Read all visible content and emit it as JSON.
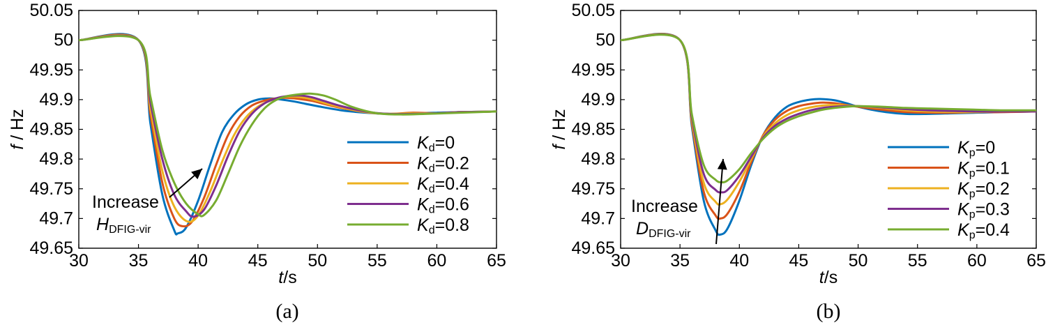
{
  "chart_data": [
    {
      "panel": "a",
      "type": "line",
      "caption": "(a)",
      "ylabel_var": "f",
      "ylabel_unit": " / Hz",
      "xlabel_var": "t",
      "xlabel_unit": "/s",
      "xlim": [
        30,
        65
      ],
      "ylim": [
        49.65,
        50.05
      ],
      "xticks": [
        "30",
        "35",
        "40",
        "45",
        "50",
        "55",
        "60",
        "65"
      ],
      "yticks": [
        "50.05",
        "50",
        "49.95",
        "49.9",
        "49.85",
        "49.8",
        "49.75",
        "49.7",
        "49.65"
      ],
      "annotation": {
        "line1": "Increase",
        "sym": "H",
        "sub": "DFIG-vir"
      },
      "series": [
        {
          "sym": "K",
          "sub": "d",
          "value": "=0",
          "color": "#0072BD",
          "x": [
            30,
            35,
            36,
            37,
            38,
            38.3,
            39,
            40,
            41,
            42,
            43,
            44,
            45,
            46,
            47,
            48,
            49,
            50,
            52,
            54,
            56,
            58,
            60,
            62,
            65
          ],
          "y": [
            50,
            50,
            49.86,
            49.74,
            49.68,
            49.675,
            49.685,
            49.73,
            49.79,
            49.845,
            49.875,
            49.892,
            49.9,
            49.902,
            49.9,
            49.897,
            49.893,
            49.889,
            49.882,
            49.878,
            49.876,
            49.877,
            49.878,
            49.879,
            49.88
          ]
        },
        {
          "sym": "K",
          "sub": "d",
          "value": "=0.2",
          "color": "#D95319",
          "x": [
            30,
            35,
            36,
            37,
            38,
            38.7,
            39.5,
            40.5,
            41.5,
            42.5,
            43.5,
            44.5,
            45.5,
            46.5,
            47.5,
            48.5,
            49.5,
            50.5,
            52,
            54,
            56,
            58,
            60,
            62,
            65
          ],
          "y": [
            50,
            50,
            49.875,
            49.76,
            49.7,
            49.687,
            49.695,
            49.735,
            49.79,
            49.84,
            49.872,
            49.89,
            49.898,
            49.902,
            49.903,
            49.901,
            49.898,
            49.893,
            49.886,
            49.879,
            49.876,
            49.878,
            49.877,
            49.879,
            49.88
          ]
        },
        {
          "sym": "K",
          "sub": "d",
          "value": "=0.4",
          "color": "#EDB120",
          "x": [
            30,
            35,
            36,
            37,
            38,
            39.1,
            40,
            41,
            42,
            43,
            44,
            45,
            46,
            47,
            48,
            49,
            50,
            51,
            52,
            54,
            56,
            58,
            60,
            62,
            65
          ],
          "y": [
            50,
            50,
            49.885,
            49.78,
            49.72,
            49.695,
            49.705,
            49.745,
            49.795,
            49.84,
            49.87,
            49.888,
            49.898,
            49.904,
            49.905,
            49.903,
            49.898,
            49.892,
            49.887,
            49.879,
            49.876,
            49.877,
            49.877,
            49.879,
            49.88
          ]
        },
        {
          "sym": "K",
          "sub": "d",
          "value": "=0.6",
          "color": "#7E2F8E",
          "x": [
            30,
            35,
            36,
            37,
            38,
            39,
            39.6,
            40.5,
            41.5,
            42.5,
            43.5,
            44.5,
            45.5,
            46.5,
            47.5,
            48.5,
            49.5,
            50.5,
            52,
            54,
            56,
            58,
            60,
            62,
            65
          ],
          "y": [
            50,
            50,
            49.895,
            49.8,
            49.74,
            49.712,
            49.703,
            49.715,
            49.755,
            49.805,
            49.848,
            49.876,
            49.893,
            49.902,
            49.906,
            49.907,
            49.904,
            49.898,
            49.889,
            49.88,
            49.876,
            49.876,
            49.877,
            49.879,
            49.88
          ]
        },
        {
          "sym": "K",
          "sub": "d",
          "value": "=0.8",
          "color": "#77AC30",
          "x": [
            30,
            35,
            36,
            37,
            38,
            39,
            40,
            40.5,
            41.5,
            42.5,
            43.5,
            44.5,
            45.5,
            46.5,
            47.5,
            48.5,
            49.5,
            50.5,
            51.5,
            53,
            55,
            57,
            59,
            62,
            65
          ],
          "y": [
            50,
            50,
            49.905,
            49.815,
            49.76,
            49.725,
            49.707,
            49.706,
            49.73,
            49.775,
            49.822,
            49.858,
            49.884,
            49.899,
            49.906,
            49.909,
            49.91,
            49.907,
            49.9,
            49.887,
            49.877,
            49.875,
            49.876,
            49.878,
            49.88
          ]
        }
      ]
    },
    {
      "panel": "b",
      "type": "line",
      "caption": "(b)",
      "ylabel_var": "f",
      "ylabel_unit": " / Hz",
      "xlabel_var": "t",
      "xlabel_unit": "/s",
      "xlim": [
        30,
        65
      ],
      "ylim": [
        49.65,
        50.05
      ],
      "xticks": [
        "30",
        "35",
        "40",
        "45",
        "50",
        "55",
        "60",
        "65"
      ],
      "yticks": [
        "50.05",
        "50",
        "49.95",
        "49.9",
        "49.85",
        "49.8",
        "49.75",
        "49.7",
        "49.65"
      ],
      "annotation": {
        "line1": "Increase",
        "sym": "D",
        "sub": "DFIG-vir"
      },
      "series": [
        {
          "sym": "K",
          "sub": "p",
          "value": "=0",
          "color": "#0072BD",
          "x": [
            30,
            35,
            36,
            37,
            38,
            38.4,
            39,
            40,
            41,
            42,
            43,
            44,
            45,
            46,
            46.8,
            48,
            49,
            50,
            52,
            54,
            56,
            58,
            60,
            62,
            65
          ],
          "y": [
            50,
            50,
            49.855,
            49.73,
            49.68,
            49.673,
            49.683,
            49.73,
            49.79,
            49.84,
            49.87,
            49.888,
            49.896,
            49.9,
            49.901,
            49.899,
            49.894,
            49.888,
            49.88,
            49.876,
            49.876,
            49.877,
            49.878,
            49.879,
            49.88
          ]
        },
        {
          "sym": "K",
          "sub": "p",
          "value": "=0.1",
          "color": "#D95319",
          "x": [
            30,
            35,
            36,
            37,
            38,
            38.4,
            39,
            40,
            41,
            42,
            43,
            44,
            45,
            46,
            47,
            48,
            49,
            50,
            52,
            54,
            56,
            58,
            60,
            62,
            65
          ],
          "y": [
            50,
            50,
            49.86,
            49.745,
            49.705,
            49.7,
            49.708,
            49.745,
            49.795,
            49.84,
            49.866,
            49.881,
            49.889,
            49.893,
            49.895,
            49.894,
            49.891,
            49.888,
            49.883,
            49.879,
            49.878,
            49.878,
            49.879,
            49.879,
            49.88
          ]
        },
        {
          "sym": "K",
          "sub": "p",
          "value": "=0.2",
          "color": "#EDB120",
          "x": [
            30,
            35,
            36,
            37,
            38,
            38.4,
            39,
            40,
            41,
            42,
            43,
            44,
            45,
            46,
            47,
            48,
            49,
            50,
            52,
            54,
            56,
            58,
            60,
            62,
            65
          ],
          "y": [
            50,
            50,
            49.865,
            49.76,
            49.728,
            49.724,
            49.732,
            49.762,
            49.8,
            49.838,
            49.86,
            49.874,
            49.882,
            49.887,
            49.89,
            49.891,
            49.89,
            49.889,
            49.886,
            49.882,
            49.88,
            49.879,
            49.879,
            49.88,
            49.88
          ]
        },
        {
          "sym": "K",
          "sub": "p",
          "value": "=0.3",
          "color": "#7E2F8E",
          "x": [
            30,
            35,
            36,
            37,
            38,
            38.5,
            39,
            40,
            41,
            42,
            43,
            44,
            45,
            46,
            47,
            48,
            49,
            50,
            52,
            54,
            56,
            58,
            60,
            62,
            65
          ],
          "y": [
            50,
            50,
            49.87,
            49.775,
            49.748,
            49.744,
            49.748,
            49.772,
            49.804,
            49.836,
            49.856,
            49.868,
            49.876,
            49.882,
            49.886,
            49.888,
            49.889,
            49.889,
            49.887,
            49.884,
            49.882,
            49.881,
            49.88,
            49.88,
            49.88
          ]
        },
        {
          "sym": "K",
          "sub": "p",
          "value": "=0.4",
          "color": "#77AC30",
          "x": [
            30,
            35,
            36,
            37,
            38,
            38.5,
            39,
            40,
            41,
            42,
            43,
            44,
            45,
            46,
            47,
            48,
            49,
            50,
            52,
            54,
            56,
            58,
            60,
            62,
            65
          ],
          "y": [
            50,
            50,
            49.875,
            49.79,
            49.765,
            49.761,
            49.764,
            49.783,
            49.81,
            49.834,
            49.852,
            49.864,
            49.872,
            49.878,
            49.883,
            49.886,
            49.888,
            49.889,
            49.888,
            49.886,
            49.885,
            49.884,
            49.883,
            49.882,
            49.882
          ]
        }
      ]
    }
  ]
}
